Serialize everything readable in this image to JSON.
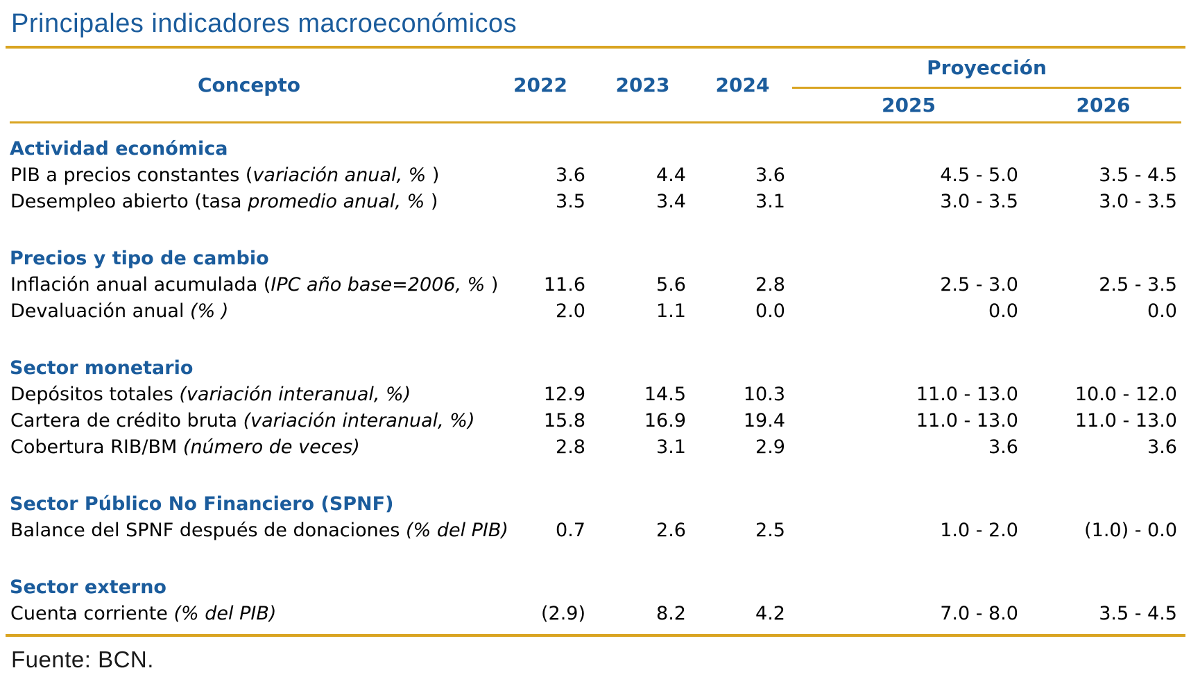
{
  "title": "Principales indicadores macroeconómicos",
  "source_note": "Fuente: BCN.",
  "colors": {
    "accent_blue": "#1B5C9C",
    "accent_gold": "#D9A421",
    "body_text": "#000000"
  },
  "table": {
    "concept_header": "Concepto",
    "year_headers": [
      "2022",
      "2023",
      "2024"
    ],
    "projection_header": "Proyección",
    "projection_year_headers": [
      "2025",
      "2026"
    ],
    "sections": [
      {
        "heading": "Actividad económica",
        "rows": [
          {
            "label_pre": "PIB a precios constantes (",
            "label_italic": "variación anual, %",
            "label_post": " )",
            "values": [
              "3.6",
              "4.4",
              "3.6",
              "4.5 - 5.0",
              "3.5 - 4.5"
            ]
          },
          {
            "label_pre": "Desempleo abierto (tasa ",
            "label_italic": "promedio anual, %",
            "label_post": " )",
            "values": [
              "3.5",
              "3.4",
              "3.1",
              "3.0 - 3.5",
              "3.0 - 3.5"
            ]
          }
        ]
      },
      {
        "heading": "Precios y tipo de cambio",
        "rows": [
          {
            "label_pre": "Inflación anual acumulada (",
            "label_italic": "IPC año base=2006, %",
            "label_post": " )",
            "values": [
              "11.6",
              "5.6",
              "2.8",
              "2.5 - 3.0",
              "2.5 - 3.5"
            ]
          },
          {
            "label_pre": "Devaluación anual ",
            "label_italic": "(% )",
            "label_post": "",
            "values": [
              "2.0",
              "1.1",
              "0.0",
              "0.0",
              "0.0"
            ]
          }
        ]
      },
      {
        "heading": "Sector monetario",
        "rows": [
          {
            "label_pre": "Depósitos totales ",
            "label_italic": "(variación interanual, %)",
            "label_post": "",
            "values": [
              "12.9",
              "14.5",
              "10.3",
              "11.0 - 13.0",
              "10.0 - 12.0"
            ]
          },
          {
            "label_pre": "Cartera de crédito bruta ",
            "label_italic": "(variación interanual, %)",
            "label_post": "",
            "values": [
              "15.8",
              "16.9",
              "19.4",
              "11.0 - 13.0",
              "11.0 - 13.0"
            ]
          },
          {
            "label_pre": "Cobertura RIB/BM ",
            "label_italic": "(número de veces)",
            "label_post": "",
            "values": [
              "2.8",
              "3.1",
              "2.9",
              "3.6",
              "3.6"
            ]
          }
        ]
      },
      {
        "heading": "Sector Público No Financiero (SPNF)",
        "rows": [
          {
            "label_pre": "Balance del SPNF después de donaciones ",
            "label_italic": "(% del PIB)",
            "label_post": "",
            "values": [
              "0.7",
              "2.6",
              "2.5",
              "1.0 - 2.0",
              "(1.0) - 0.0"
            ]
          }
        ]
      },
      {
        "heading": "Sector externo",
        "rows": [
          {
            "label_pre": "Cuenta corriente ",
            "label_italic": "(% del PIB)",
            "label_post": "",
            "values": [
              "(2.9)",
              "8.2",
              "4.2",
              "7.0 - 8.0",
              "3.5 - 4.5"
            ]
          }
        ]
      }
    ]
  }
}
